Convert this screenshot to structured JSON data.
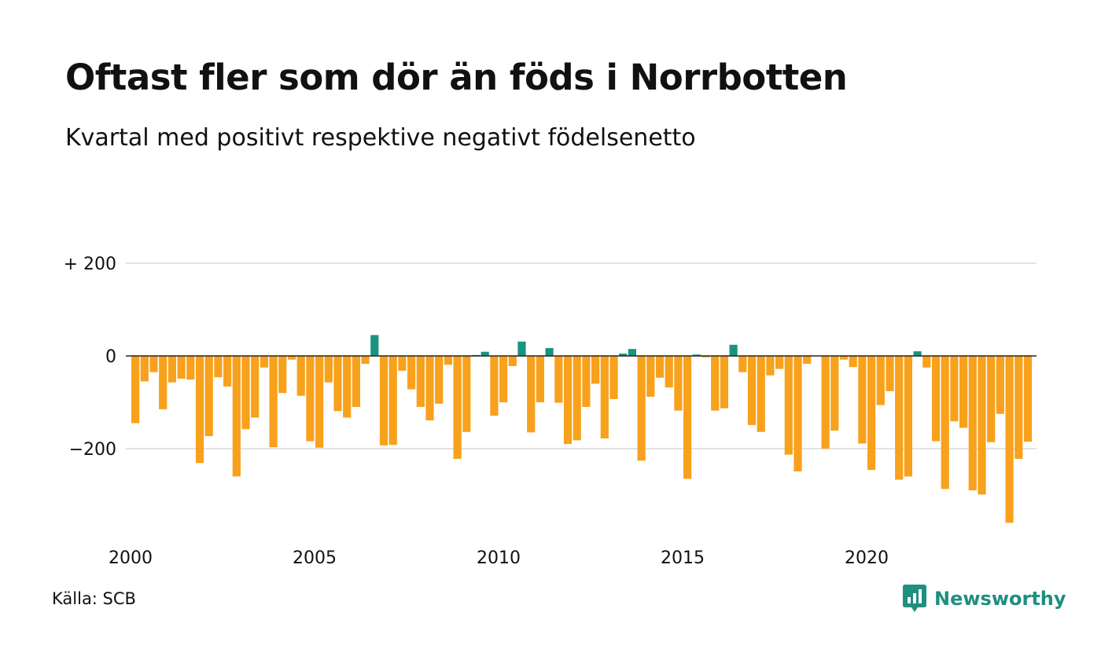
{
  "header": {
    "title": "Oftast fler som dör än föds i Norrbotten",
    "subtitle": "Kvartal med positivt respektive negativt födelsenetto"
  },
  "footer": {
    "source": "Källa: SCB",
    "brand": "Newsworthy"
  },
  "colors": {
    "positive": "#1a9381",
    "negative": "#f8a11c",
    "gridline": "#e3e3e3",
    "zeroline": "#222222",
    "brand": "#1e8f80"
  },
  "icons": {
    "brand_logo": "bar-chart-speech-bubble-icon"
  },
  "chart_data": {
    "type": "bar",
    "title": "Oftast fler som dör än föds i Norrbotten",
    "subtitle": "Kvartal med positivt respektive negativt födelsenetto",
    "x_start": "2000 Q1",
    "x_end": "2024 Q3",
    "x_ticks": [
      {
        "year": 2000,
        "label": "2000"
      },
      {
        "year": 2005,
        "label": "2005"
      },
      {
        "year": 2010,
        "label": "2010"
      },
      {
        "year": 2015,
        "label": "2015"
      },
      {
        "year": 2020,
        "label": "2020"
      }
    ],
    "y_ticks": [
      {
        "value": 200,
        "label": "+ 200"
      },
      {
        "value": 0,
        "label": "0"
      },
      {
        "value": -200,
        "label": "−200"
      }
    ],
    "ylim": [
      -370,
      200
    ],
    "grid": true,
    "values": [
      -145,
      -55,
      -35,
      -115,
      -57,
      -49,
      -51,
      -231,
      -173,
      -46,
      -66,
      -260,
      -158,
      -133,
      -25,
      -197,
      -80,
      -8,
      -86,
      -184,
      -198,
      -57,
      -119,
      -133,
      -110,
      -17,
      45,
      -193,
      -192,
      -32,
      -72,
      -110,
      -139,
      -103,
      -19,
      -222,
      -164,
      2,
      9,
      -129,
      -100,
      -22,
      31,
      -165,
      -100,
      17,
      -101,
      -190,
      -182,
      -110,
      -60,
      -178,
      -93,
      5,
      15,
      -226,
      -88,
      -47,
      -68,
      -118,
      -265,
      3,
      -3,
      -118,
      -113,
      24,
      -35,
      -149,
      -164,
      -42,
      -28,
      -213,
      -249,
      -17,
      0,
      -200,
      -161,
      -8,
      -24,
      -189,
      -246,
      -106,
      -76,
      -267,
      -260,
      10,
      -25,
      -184,
      -287,
      -141,
      -155,
      -290,
      -299,
      -186,
      -125,
      -360,
      -222,
      -185
    ]
  }
}
